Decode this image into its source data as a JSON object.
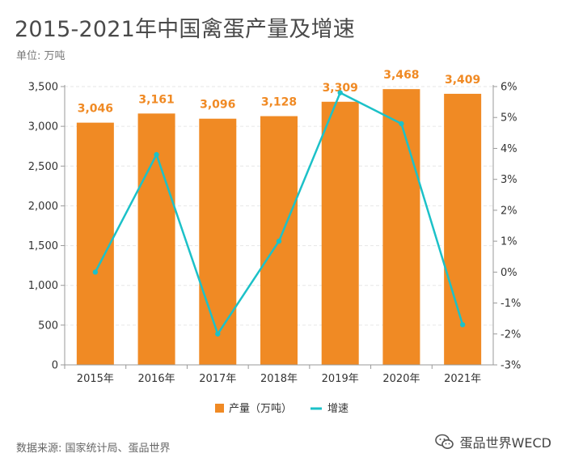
{
  "header": {
    "title": "2015-2021年中国禽蛋产量及增速",
    "unit": "单位: 万吨"
  },
  "footer": {
    "source": "数据来源: 国家统计局、蛋品世界",
    "brand": "蛋品世界WECD",
    "brand_icon": "wechat-icon"
  },
  "colors": {
    "bar": "#f08a24",
    "line": "#1cc1c8",
    "grid": "#e6e6e6",
    "axis": "#999999"
  },
  "chart_data": {
    "type": "bar",
    "categories": [
      "2015年",
      "2016年",
      "2017年",
      "2018年",
      "2019年",
      "2020年",
      "2021年"
    ],
    "series": [
      {
        "name": "产量（万吨）",
        "type": "bar",
        "axis": "left",
        "values": [
          3046,
          3161,
          3096,
          3128,
          3309,
          3468,
          3409
        ],
        "labels": [
          "3,046",
          "3,161",
          "3,096",
          "3,128",
          "3,309",
          "3,468",
          "3,409"
        ]
      },
      {
        "name": "增速",
        "type": "line",
        "axis": "right",
        "values": [
          0.0,
          3.8,
          -2.0,
          1.0,
          5.8,
          4.8,
          -1.7
        ]
      }
    ],
    "y_left": {
      "ylim": [
        0,
        3500
      ],
      "ticks": [
        0,
        500,
        1000,
        1500,
        2000,
        2500,
        3000,
        3500
      ],
      "tick_labels": [
        "0",
        "500",
        "1,000",
        "1,500",
        "2,000",
        "2,500",
        "3,000",
        "3,500"
      ]
    },
    "y_right": {
      "ylim": [
        -3,
        6
      ],
      "ticks": [
        -3,
        -2,
        -1,
        0,
        1,
        2,
        3,
        4,
        5,
        6
      ],
      "tick_labels": [
        "-3%",
        "-2%",
        "-1%",
        "0%",
        "1%",
        "2%",
        "3%",
        "4%",
        "5%",
        "6%"
      ]
    },
    "grid": true,
    "legend": "bottom-center"
  }
}
